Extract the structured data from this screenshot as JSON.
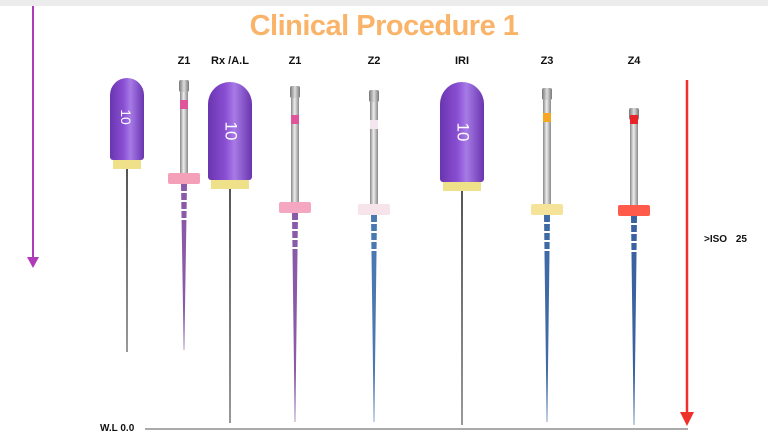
{
  "title": "Clinical Procedure 1",
  "instruments": [
    {
      "label": "",
      "type": "kfile",
      "size": "10",
      "handle": "#8a4fd4",
      "collar": "#efe08a"
    },
    {
      "label": "Z1",
      "type": "rotary",
      "ring": "#e0559a",
      "stopper": "#f3a0b8",
      "shaft": "#8a5aa8"
    },
    {
      "label": "Rx /A.L",
      "type": "kfile",
      "size": "10",
      "handle": "#8a4fd4",
      "collar": "#efe08a"
    },
    {
      "label": "Z1",
      "type": "rotary",
      "ring": "#e0559a",
      "stopper": "#f5a6c0",
      "shaft": "#8a5aa8"
    },
    {
      "label": "Z2",
      "type": "rotary",
      "ring": "#f4e6ee",
      "stopper": "#f6e4ea",
      "shaft": "#4a78b0"
    },
    {
      "label": "IRI",
      "type": "kfile",
      "size": "10",
      "handle": "#8a4fd4",
      "collar": "#efe08a"
    },
    {
      "label": "Z3",
      "type": "rotary",
      "ring": "#f5a623",
      "stopper": "#f5e39a",
      "shaft": "#3f6aa5"
    },
    {
      "label": "Z4",
      "type": "rotary",
      "ring": "#e8232a",
      "stopper": "#ff5a4a",
      "shaft": "#3a62a0"
    }
  ],
  "working_length_label": "W.L 0.0",
  "iso_label": ">ISO 25",
  "colors": {
    "left_arrow": "#b03ab8",
    "right_arrow": "#f0302a",
    "title": "#f9b46a"
  }
}
